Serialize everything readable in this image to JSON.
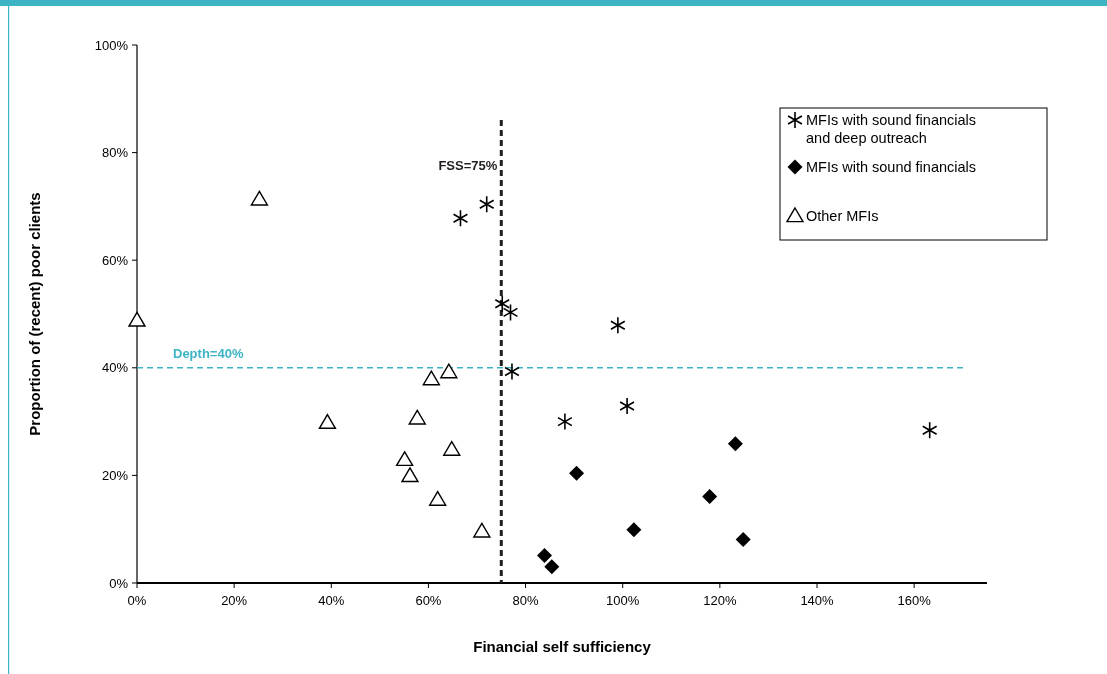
{
  "chart_data": {
    "type": "scatter",
    "xlabel": "Financial self sufficiency",
    "ylabel": "Proportion of (recent) poor clients",
    "xlim": [
      0,
      175
    ],
    "ylim": [
      0,
      100
    ],
    "xticks": [
      {
        "value": 0,
        "label": "0%"
      },
      {
        "value": 20,
        "label": "20%"
      },
      {
        "value": 40,
        "label": "40%"
      },
      {
        "value": 60,
        "label": "60%"
      },
      {
        "value": 80,
        "label": "80%"
      },
      {
        "value": 100,
        "label": "100%"
      },
      {
        "value": 120,
        "label": "120%"
      },
      {
        "value": 140,
        "label": "140%"
      },
      {
        "value": 160,
        "label": "160%"
      }
    ],
    "yticks": [
      {
        "value": 0,
        "label": "0%"
      },
      {
        "value": 20,
        "label": "20%"
      },
      {
        "value": 40,
        "label": "40%"
      },
      {
        "value": 60,
        "label": "60%"
      },
      {
        "value": 80,
        "label": "80%"
      },
      {
        "value": 100,
        "label": "100%"
      }
    ],
    "legend": "top right",
    "grid": false,
    "series": [
      {
        "name": "MFIs with sound financials and deep outreach",
        "color": "#000000",
        "marker": "cross",
        "x": [
          66.6,
          72.0,
          75.2,
          76.9,
          77.2,
          99.0,
          88.1,
          100.9,
          163.2
        ],
        "values": [
          67.8,
          70.4,
          51.9,
          50.3,
          39.3,
          47.9,
          30.0,
          32.9,
          28.4
        ]
      },
      {
        "name": "MFIs with sound financials",
        "color": "#000000",
        "marker": "diamond",
        "x": [
          90.5,
          83.9,
          85.4,
          102.3,
          117.9,
          123.2,
          124.8
        ],
        "values": [
          20.4,
          5.1,
          3.0,
          9.9,
          16.1,
          25.9,
          8.1
        ]
      },
      {
        "name": "Other MFIs",
        "color": "#000000",
        "marker": "triangle",
        "x": [
          25.2,
          0,
          39.2,
          60.6,
          64.2,
          57.7,
          55.1,
          56.2,
          64.8,
          61.9,
          71.0
        ],
        "values": [
          71.3,
          48.8,
          29.8,
          37.9,
          39.2,
          30.6,
          22.9,
          19.9,
          24.8,
          15.5,
          9.6
        ]
      }
    ],
    "ref_lines": [
      {
        "axis": "x",
        "value": 75,
        "label": "FSS=75%",
        "color": "#231f20",
        "line_style": "dashed"
      },
      {
        "axis": "y",
        "value": 40,
        "label": "Depth=40%",
        "color": "#3db4c3",
        "line_style": "dashed"
      }
    ]
  }
}
